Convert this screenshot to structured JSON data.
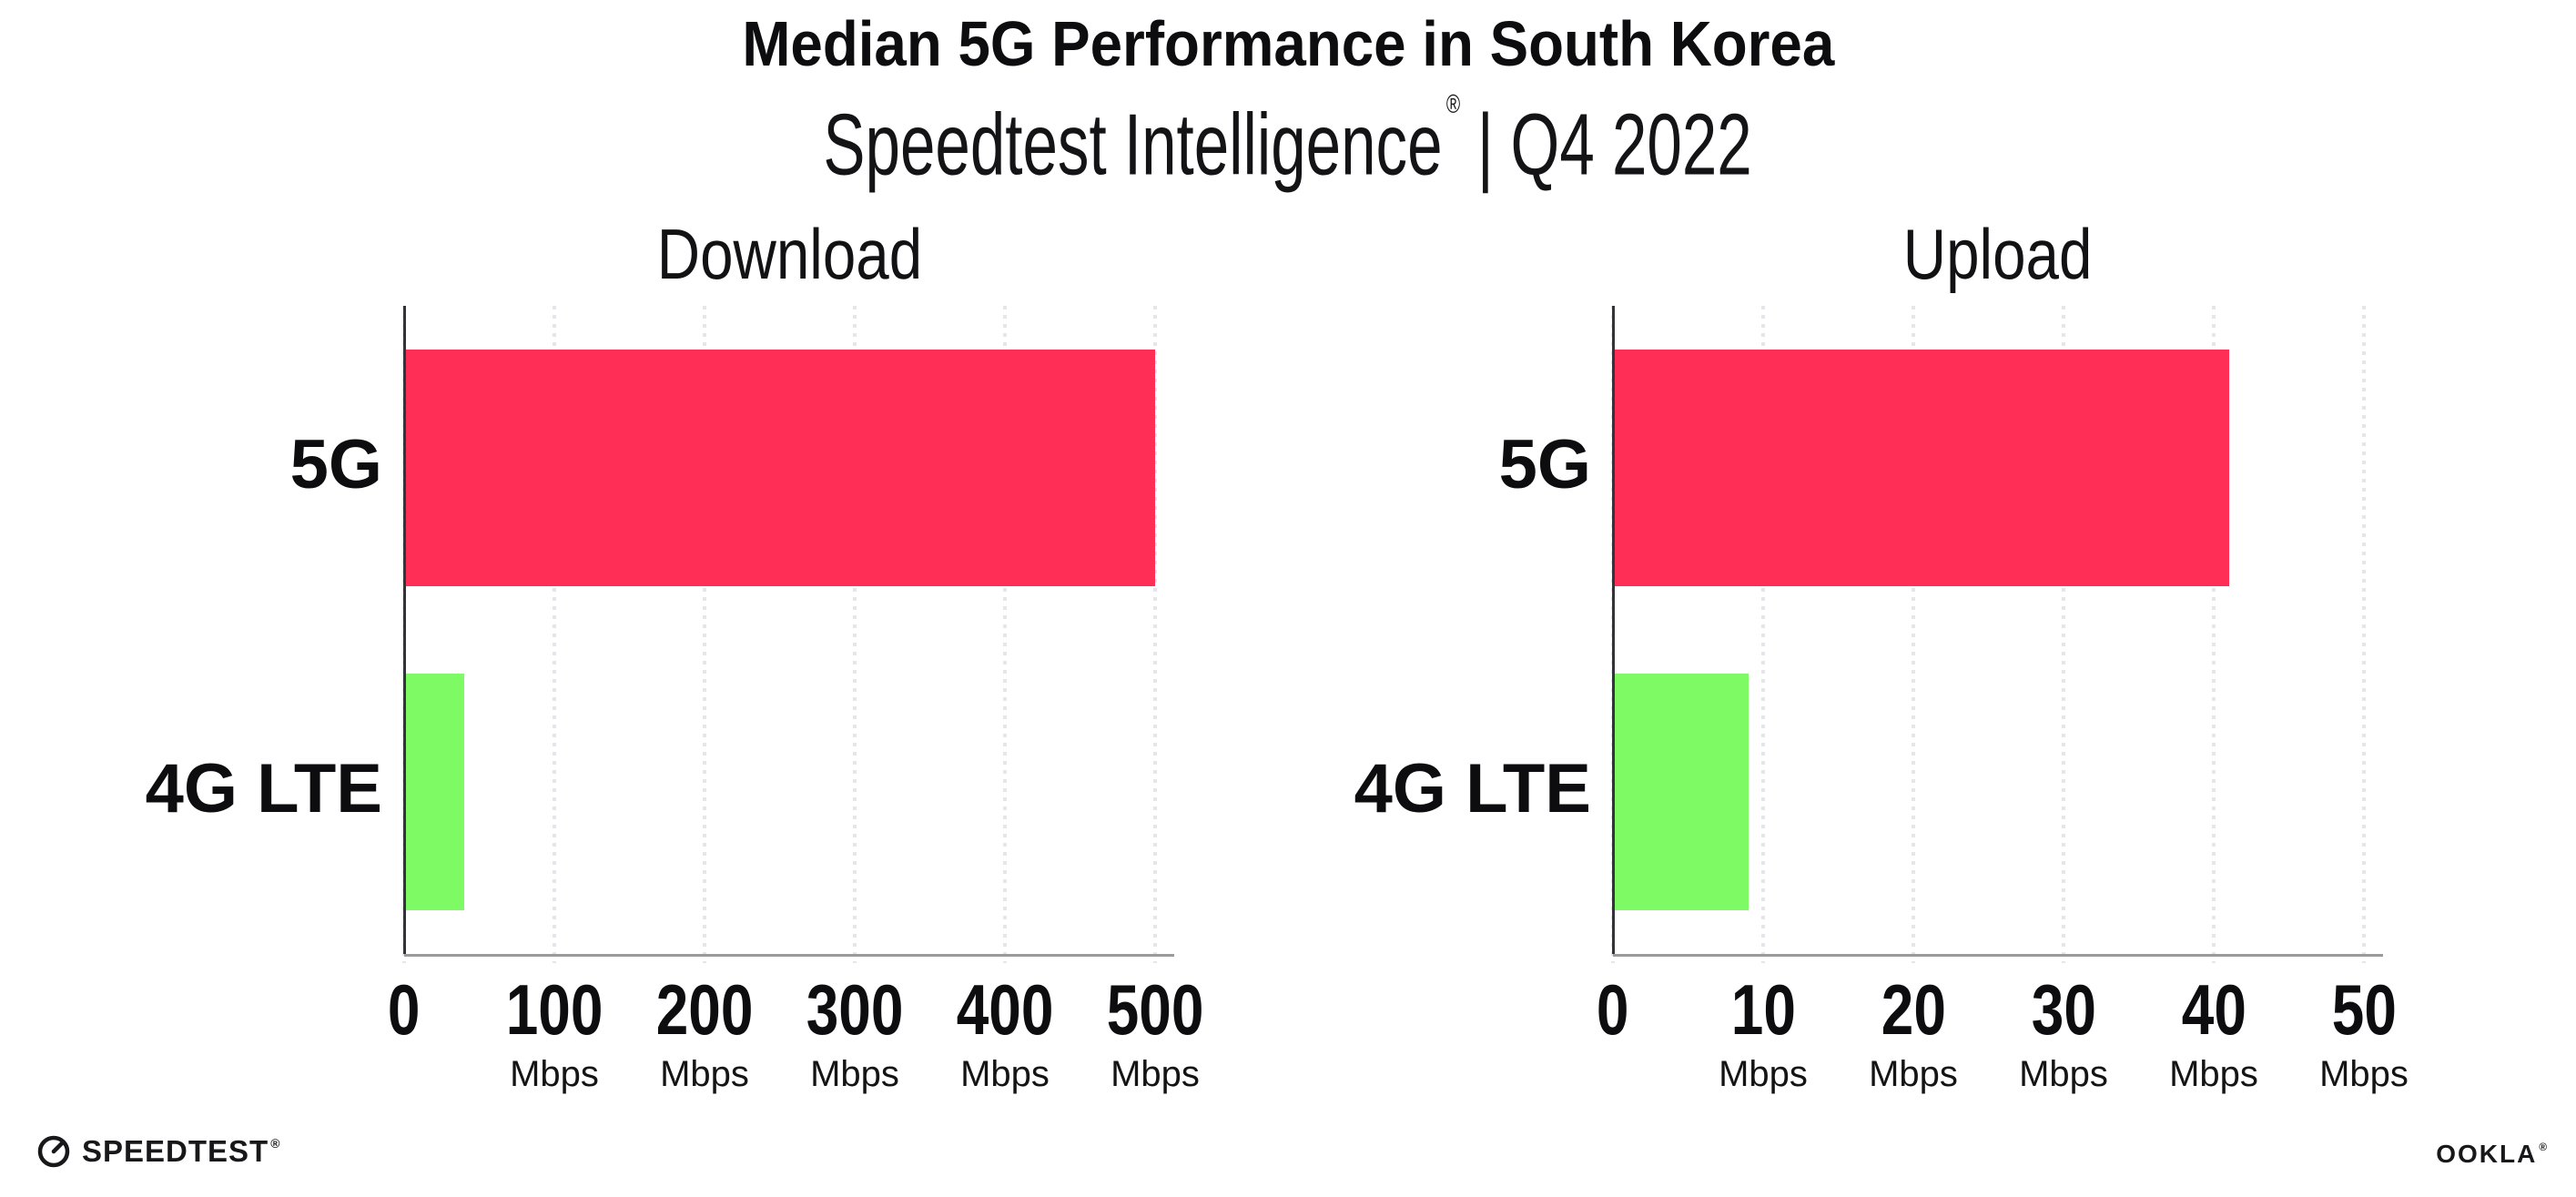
{
  "header": {
    "title": "Median 5G Performance in South Korea",
    "subtitle": {
      "brand": "Speedtest Intelligence",
      "reg_mark": "®",
      "separator": "|",
      "period": "Q4 2022"
    }
  },
  "chart_data": [
    {
      "type": "bar",
      "orientation": "horizontal",
      "title": "Download",
      "categories": [
        "5G",
        "4G LTE"
      ],
      "values": [
        500,
        40
      ],
      "unit": "Mbps",
      "xlim": [
        0,
        500
      ],
      "ticks": [
        0,
        100,
        200,
        300,
        400,
        500
      ],
      "tick_unit": "Mbps",
      "bar_colors": [
        "#FF2E56",
        "#7EFA65"
      ],
      "grid": "dotted-vertical",
      "legend": "none"
    },
    {
      "type": "bar",
      "orientation": "horizontal",
      "title": "Upload",
      "categories": [
        "5G",
        "4G LTE"
      ],
      "values": [
        41,
        9
      ],
      "unit": "Mbps",
      "xlim": [
        0,
        50
      ],
      "ticks": [
        0,
        10,
        20,
        30,
        40,
        50
      ],
      "tick_unit": "Mbps",
      "bar_colors": [
        "#FF2E56",
        "#7EFA65"
      ],
      "grid": "dotted-vertical",
      "legend": "none"
    }
  ],
  "footer": {
    "speedtest_wordmark": "SPEEDTEST",
    "speedtest_mark": "®",
    "ookla_wordmark": "OOKLA",
    "ookla_mark": "®"
  },
  "colors": {
    "bar_5g": "#FF2E56",
    "bar_4g_lte": "#7EFA65",
    "gridline": "#E5E5EA",
    "y_axis": "#33333B",
    "x_axis": "#9B9B9B",
    "text": "#0D0D0F",
    "background": "#FFFFFF"
  }
}
